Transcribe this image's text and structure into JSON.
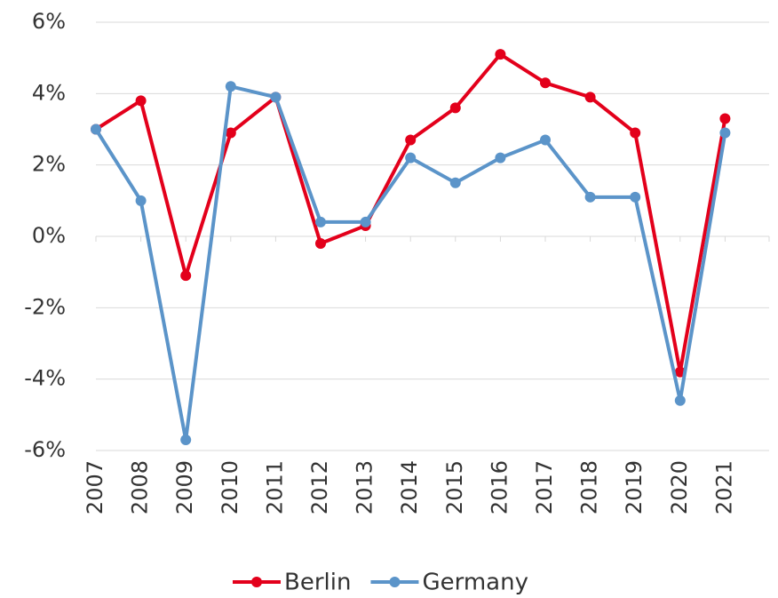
{
  "chart_data": {
    "type": "line",
    "categories": [
      "2007",
      "2008",
      "2009",
      "2010",
      "2011",
      "2012",
      "2013",
      "2014",
      "2015",
      "2016",
      "2017",
      "2018",
      "2019",
      "2020",
      "2021"
    ],
    "series": [
      {
        "name": "Berlin",
        "color": "#e3001b",
        "values": [
          3.0,
          3.8,
          -1.1,
          2.9,
          3.9,
          -0.2,
          0.3,
          2.7,
          3.6,
          5.1,
          4.3,
          3.9,
          2.9,
          -3.8,
          3.3
        ]
      },
      {
        "name": "Germany",
        "color": "#5b94c9",
        "values": [
          3.0,
          1.0,
          -5.7,
          4.2,
          3.9,
          0.4,
          0.4,
          2.2,
          1.5,
          2.2,
          2.7,
          1.1,
          1.1,
          -4.6,
          2.9
        ]
      }
    ],
    "ylim": [
      -6,
      6
    ],
    "yticks": [
      {
        "value": -6,
        "label": "-6%"
      },
      {
        "value": -4,
        "label": "-4%"
      },
      {
        "value": -2,
        "label": "-2%"
      },
      {
        "value": 0,
        "label": "0%"
      },
      {
        "value": 2,
        "label": "2%"
      },
      {
        "value": 4,
        "label": "4%"
      },
      {
        "value": 6,
        "label": "6%"
      }
    ],
    "grid": true
  }
}
